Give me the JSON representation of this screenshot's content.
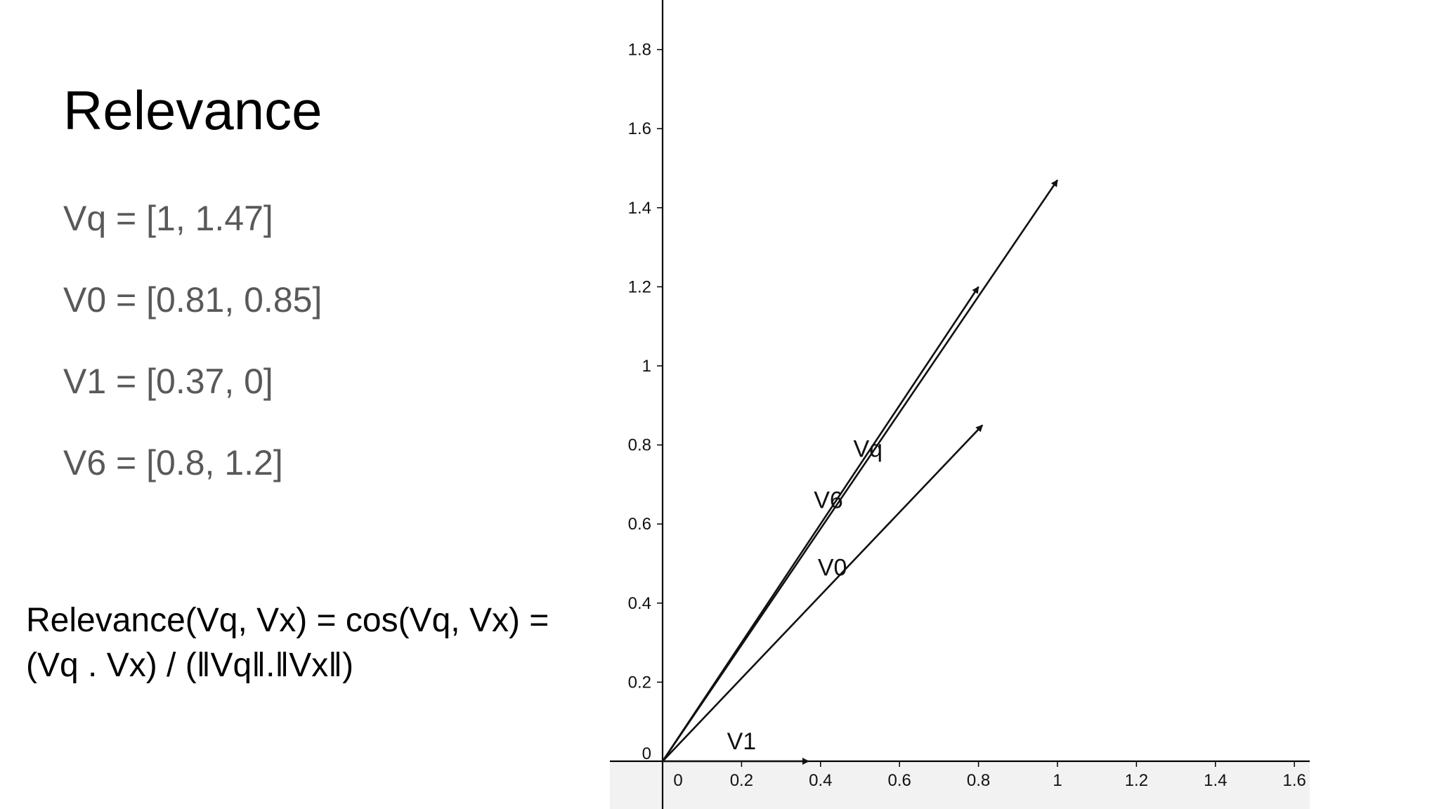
{
  "slide": {
    "title": "Relevance",
    "vectors": [
      "Vq = [1, 1.47]",
      "V0 = [0.81, 0.85]",
      "V1 = [0.37, 0]",
      "V6 = [0.8, 1.2]"
    ],
    "formula_line1": "Relevance(Vq, Vx) = cos(Vq, Vx) =",
    "formula_line2": "(Vq . Vx) / (‖Vq‖.‖Vx‖)"
  },
  "chart_data": {
    "type": "vector",
    "title": "",
    "xlabel": "",
    "ylabel": "",
    "xlim": [
      -0.14,
      1.63
    ],
    "ylim": [
      -0.13,
      1.93
    ],
    "x_ticks": [
      0,
      0.2,
      0.4,
      0.6,
      0.8,
      1,
      1.2,
      1.4,
      1.6
    ],
    "y_ticks": [
      0,
      0.2,
      0.4,
      0.6,
      0.8,
      1,
      1.2,
      1.4,
      1.6,
      1.8
    ],
    "x_tick_labels": [
      "0",
      "0.2",
      "0.4",
      "0.6",
      "0.8",
      "1",
      "1.2",
      "1.4",
      "1.6"
    ],
    "y_tick_labels": [
      "0",
      "0.2",
      "0.4",
      "0.6",
      "0.8",
      "1",
      "1.2",
      "1.4",
      "1.6",
      "1.8"
    ],
    "grid": false,
    "series": [
      {
        "name": "Vq",
        "x": 1,
        "y": 1.47,
        "label_at": [
          0.52,
          0.77
        ]
      },
      {
        "name": "V6",
        "x": 0.8,
        "y": 1.2,
        "label_at": [
          0.42,
          0.64
        ]
      },
      {
        "name": "V0",
        "x": 0.81,
        "y": 0.85,
        "label_at": [
          0.43,
          0.47
        ]
      },
      {
        "name": "V1",
        "x": 0.37,
        "y": 0,
        "label_at": [
          0.2,
          0.03
        ]
      }
    ],
    "colors": {
      "axis": "#000000",
      "vector": "#111111",
      "axis_band": "#f2f2f2"
    }
  }
}
